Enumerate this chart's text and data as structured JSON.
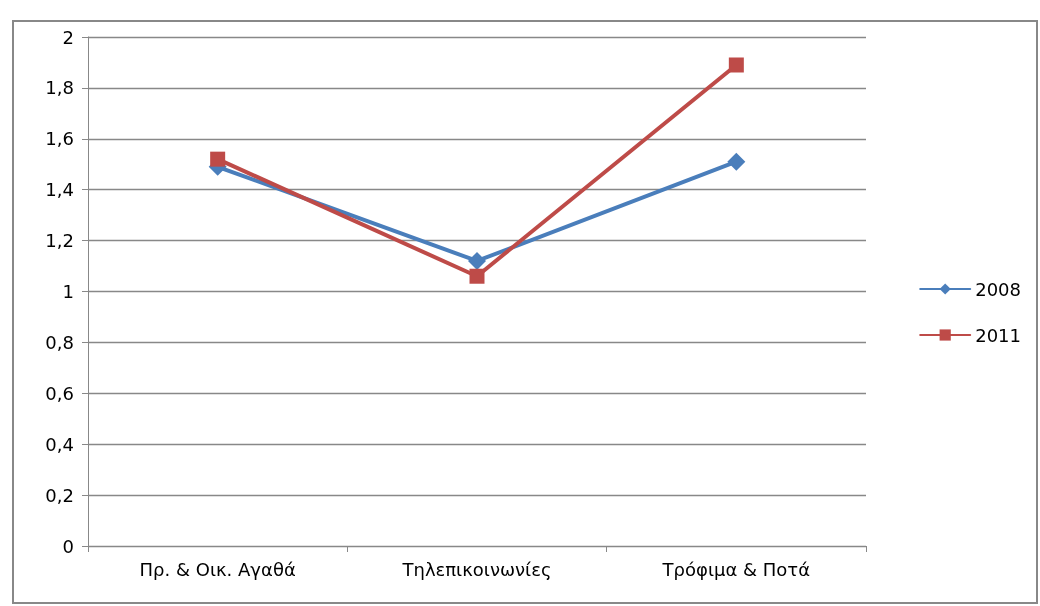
{
  "chart_data": {
    "type": "line",
    "categories": [
      "Πρ. & Οικ. Αγαθά",
      "Τηλεπικοινωνίες",
      "Τρόφιμα & Ποτά"
    ],
    "series": [
      {
        "name": "2008",
        "color": "#4a7ebb",
        "marker": "diamond",
        "values": [
          1.49,
          1.12,
          1.51
        ]
      },
      {
        "name": "2011",
        "color": "#be4b48",
        "marker": "square",
        "values": [
          1.52,
          1.06,
          1.89
        ]
      }
    ],
    "ylim": [
      0,
      2
    ],
    "yticks": [
      0,
      {
        "value": 0.2,
        "label": "0,2"
      },
      {
        "value": 0.4,
        "label": "0,4"
      },
      {
        "value": 0.6,
        "label": "0,6"
      },
      {
        "value": 0.8,
        "label": "0,8"
      },
      1,
      {
        "value": 1.2,
        "label": "1,2"
      },
      {
        "value": 1.4,
        "label": "1,4"
      },
      {
        "value": 1.6,
        "label": "1,6"
      },
      {
        "value": 1.8,
        "label": "1,8"
      },
      2
    ],
    "grid": "y",
    "legend": "right",
    "line_style": "solid"
  }
}
